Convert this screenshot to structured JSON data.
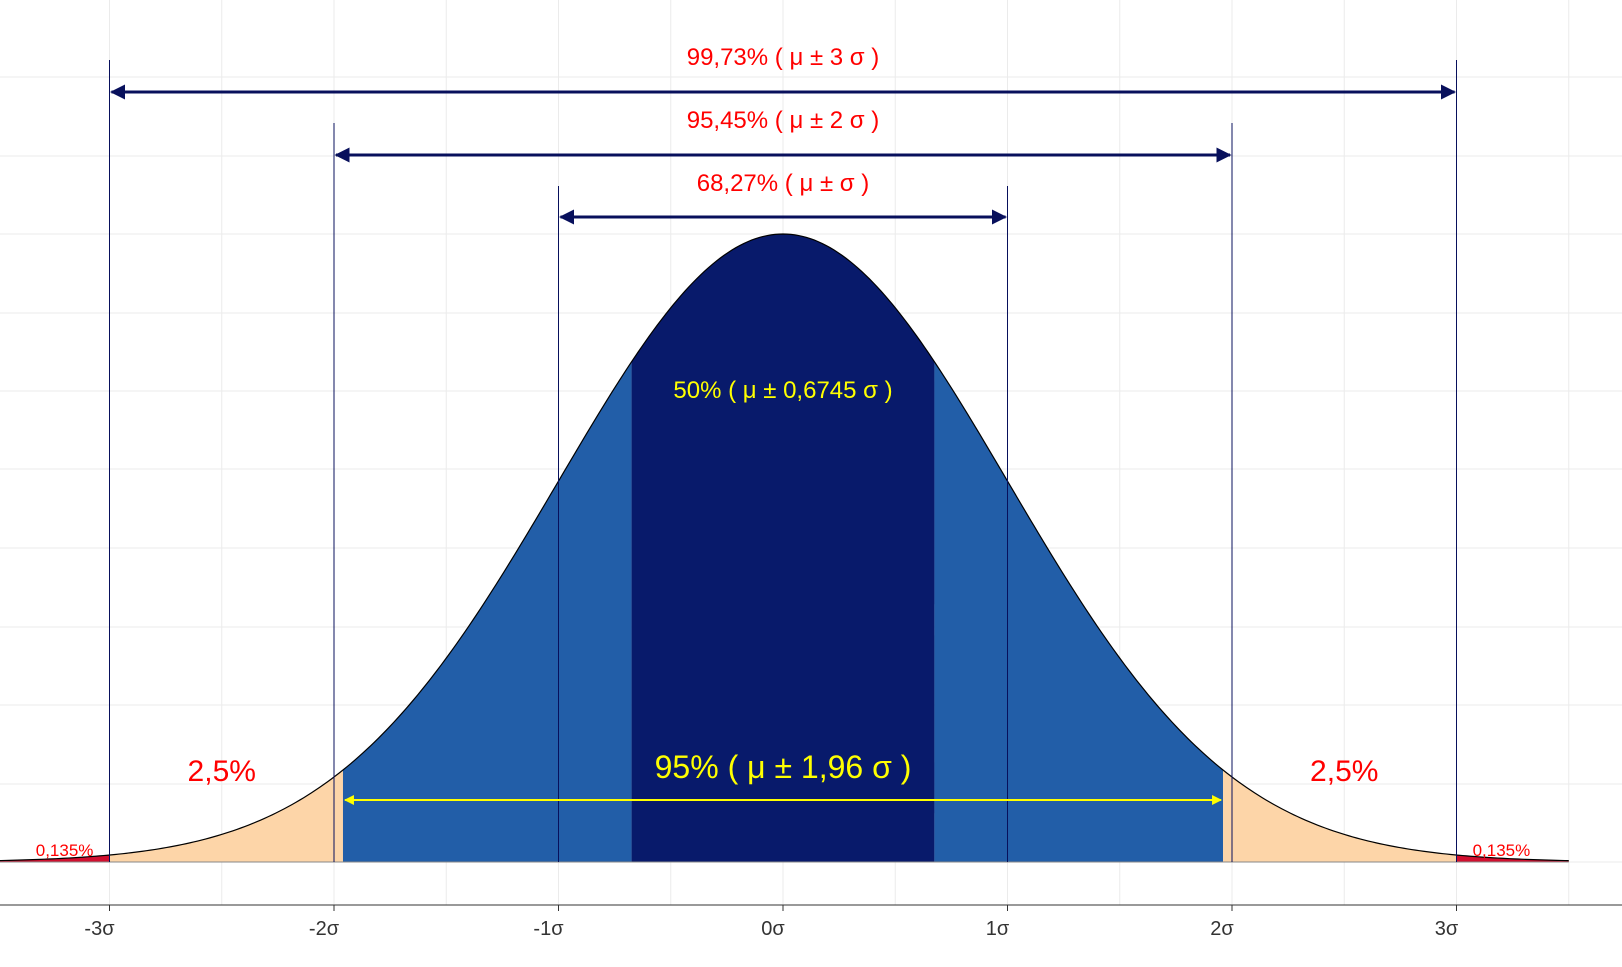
{
  "chart_data": {
    "type": "area",
    "distribution": "normal",
    "mean": 0,
    "sd": 1,
    "xlim": [
      -3.5,
      3.5
    ],
    "grid": true,
    "x_ticks": [
      {
        "value": -3,
        "label": "-3σ"
      },
      {
        "value": -2,
        "label": "-2σ"
      },
      {
        "value": -1,
        "label": "-1σ"
      },
      {
        "value": 0,
        "label": "0σ"
      },
      {
        "value": 1,
        "label": "1σ"
      },
      {
        "value": 2,
        "label": "2σ"
      },
      {
        "value": 3,
        "label": "3σ"
      }
    ],
    "regions": [
      {
        "from": -3.5,
        "to": -3,
        "color": "#d10f2f"
      },
      {
        "from": -3,
        "to": -1.96,
        "color": "#fdd5a8"
      },
      {
        "from": -1.96,
        "to": -0.6745,
        "color": "#225ea8"
      },
      {
        "from": -0.6745,
        "to": 0.6745,
        "color": "#081a6b"
      },
      {
        "from": 0.6745,
        "to": 1.96,
        "color": "#225ea8"
      },
      {
        "from": 1.96,
        "to": 3,
        "color": "#fdd5a8"
      },
      {
        "from": 3,
        "to": 3.5,
        "color": "#d10f2f"
      }
    ],
    "intervals": [
      {
        "from": -3,
        "to": 3,
        "label": "99,73% ( μ ± 3 σ )"
      },
      {
        "from": -2,
        "to": 2,
        "label": "95,45% ( μ ± 2 σ )"
      },
      {
        "from": -1,
        "to": 1,
        "label": "68,27% ( μ ±  σ )"
      }
    ],
    "center_interval": {
      "from": -0.6745,
      "to": 0.6745,
      "label": "50% ( μ ± 0,6745 σ )"
    },
    "ci95": {
      "from": -1.96,
      "to": 1.96,
      "label": "95% ( μ ± 1,96 σ )"
    },
    "tail_labels": {
      "left_25": "2,5%",
      "right_25": "2,5%",
      "left_0135": "0,135%",
      "right_0135": "0,135%"
    }
  },
  "colors": {
    "interval_arrow": "#08105c",
    "ci_arrow": "#ffff00",
    "label_red": "#ff0000",
    "label_yellow": "#ffff00",
    "grid": "#ebebeb"
  }
}
